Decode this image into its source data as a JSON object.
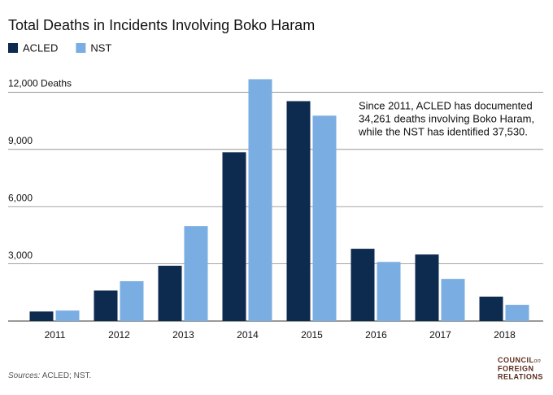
{
  "chart_data": {
    "type": "bar",
    "title": "Total Deaths in Incidents Involving Boko Haram",
    "categories": [
      "2011",
      "2012",
      "2013",
      "2014",
      "2015",
      "2016",
      "2017",
      "2018"
    ],
    "series": [
      {
        "name": "ACLED",
        "color": "#0d2a4f",
        "values": [
          500,
          1600,
          2900,
          8850,
          11530,
          3790,
          3490,
          1280
        ]
      },
      {
        "name": "NST",
        "color": "#7aaee2",
        "values": [
          550,
          2090,
          4980,
          12680,
          10770,
          3100,
          2210,
          850
        ]
      }
    ],
    "ylim": [
      0,
      12700
    ],
    "yticks": [
      {
        "value": 3000,
        "label": "3,000"
      },
      {
        "value": 6000,
        "label": "6,000"
      },
      {
        "value": 9000,
        "label": "9,000"
      },
      {
        "value": 12000,
        "label": "12,000 Deaths"
      }
    ],
    "grid": true,
    "annotation": [
      "Since 2011, ACLED has documented",
      "34,261 deaths involving Boko Haram,",
      "while the NST has identified 37,530."
    ],
    "source_label": "Sources:",
    "source": "ACLED; NST.",
    "logo": [
      "COUNCIL",
      "on",
      "FOREIGN",
      "RELATIONS"
    ]
  }
}
